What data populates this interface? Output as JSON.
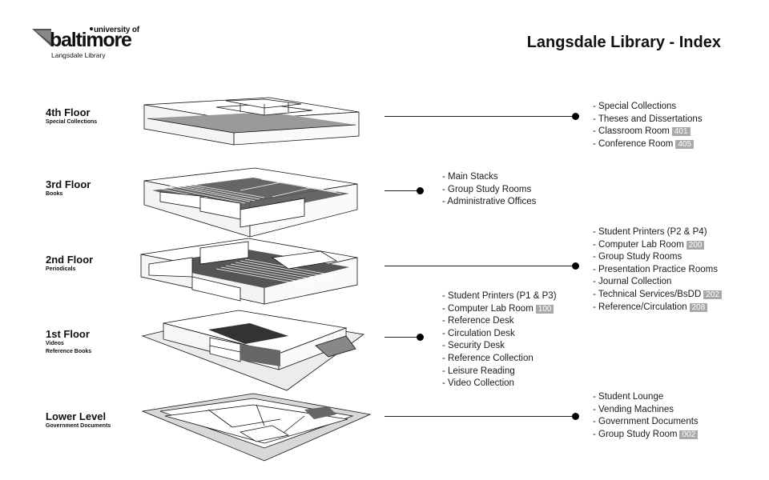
{
  "logo": {
    "university": "university of",
    "name": "baltimore",
    "subtitle": "Langsdale Library"
  },
  "title": "Langsdale Library - Index",
  "floors": [
    {
      "name": "4th Floor",
      "subtitle": [
        "Special Collections"
      ],
      "items": [
        {
          "text": "- Special Collections",
          "room": ""
        },
        {
          "text": "- Theses and Dissertations",
          "room": ""
        },
        {
          "text": "- Classroom Room",
          "room": "401"
        },
        {
          "text": "- Conference Room",
          "room": "405"
        }
      ]
    },
    {
      "name": "3rd Floor",
      "subtitle": [
        "Books"
      ],
      "items": [
        {
          "text": "- Main Stacks",
          "room": ""
        },
        {
          "text": "- Group Study Rooms",
          "room": ""
        },
        {
          "text": "- Administrative Offices",
          "room": ""
        }
      ]
    },
    {
      "name": "2nd Floor",
      "subtitle": [
        "Periodicals"
      ],
      "items": [
        {
          "text": "- Student Printers (P2 & P4)",
          "room": ""
        },
        {
          "text": "- Computer Lab Room",
          "room": "200"
        },
        {
          "text": "- Group Study Rooms",
          "room": ""
        },
        {
          "text": "- Presentation Practice Rooms",
          "room": ""
        },
        {
          "text": "- Journal Collection",
          "room": ""
        },
        {
          "text": "- Technical Services/BsDD",
          "room": "202"
        },
        {
          "text": "- Reference/Circulation",
          "room": "208"
        }
      ]
    },
    {
      "name": "1st Floor",
      "subtitle": [
        "Videos",
        "Reference Books"
      ],
      "items": [
        {
          "text": "- Student Printers (P1 & P3)",
          "room": ""
        },
        {
          "text": "- Computer Lab Room",
          "room": "100"
        },
        {
          "text": "- Reference Desk",
          "room": ""
        },
        {
          "text": "- Circulation Desk",
          "room": ""
        },
        {
          "text": "- Security Desk",
          "room": ""
        },
        {
          "text": "- Reference Collection",
          "room": ""
        },
        {
          "text": "- Leisure Reading",
          "room": ""
        },
        {
          "text": "- Video Collection",
          "room": ""
        }
      ]
    },
    {
      "name": "Lower Level",
      "subtitle": [
        "Government Documents"
      ],
      "items": [
        {
          "text": "- Student Lounge",
          "room": ""
        },
        {
          "text": "- Vending Machines",
          "room": ""
        },
        {
          "text": "- Government Documents",
          "room": ""
        },
        {
          "text": "- Group Study Room",
          "room": "002"
        }
      ]
    }
  ]
}
